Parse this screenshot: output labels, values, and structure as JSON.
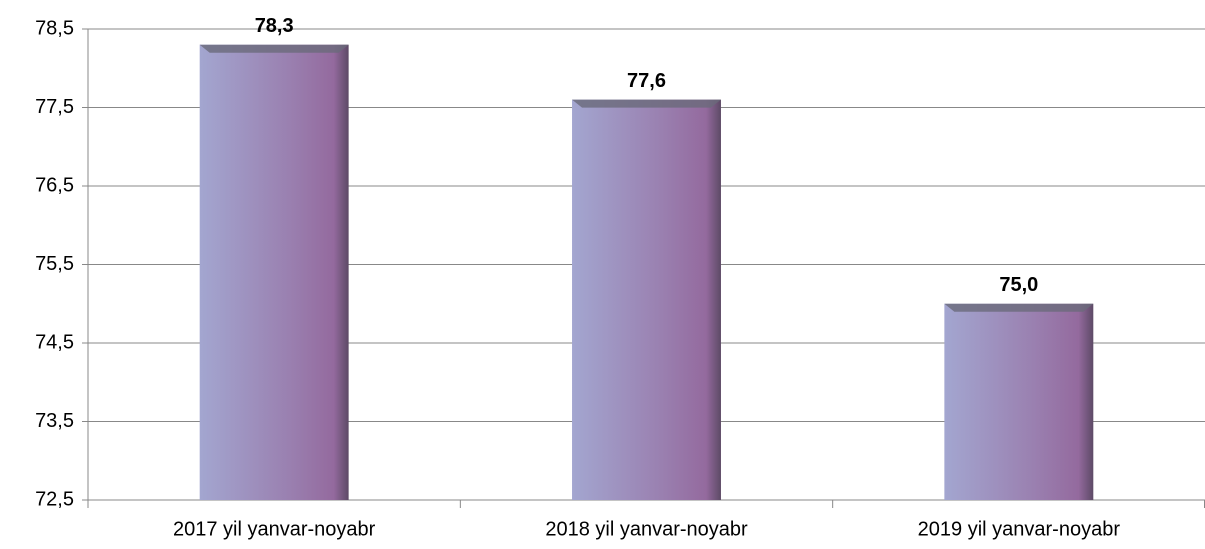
{
  "chart_data": {
    "type": "bar",
    "categories": [
      "2017 yil yanvar-noyabr",
      "2018 yil yanvar-noyabr",
      "2019 yil yanvar-noyabr"
    ],
    "values": [
      78.3,
      77.6,
      75.0
    ],
    "value_labels": [
      "78,3",
      "77,6",
      "75,0"
    ],
    "color": "#9b86b8",
    "ylim": [
      72.5,
      78.5
    ],
    "yticks": [
      {
        "value": 72.5,
        "label": "72,5"
      },
      {
        "value": 73.5,
        "label": "73,5"
      },
      {
        "value": 74.5,
        "label": "74,5"
      },
      {
        "value": 75.5,
        "label": "75,5"
      },
      {
        "value": 76.5,
        "label": "76,5"
      },
      {
        "value": 77.5,
        "label": "77,5"
      },
      {
        "value": 78.5,
        "label": "78,5"
      }
    ],
    "grid": true
  }
}
